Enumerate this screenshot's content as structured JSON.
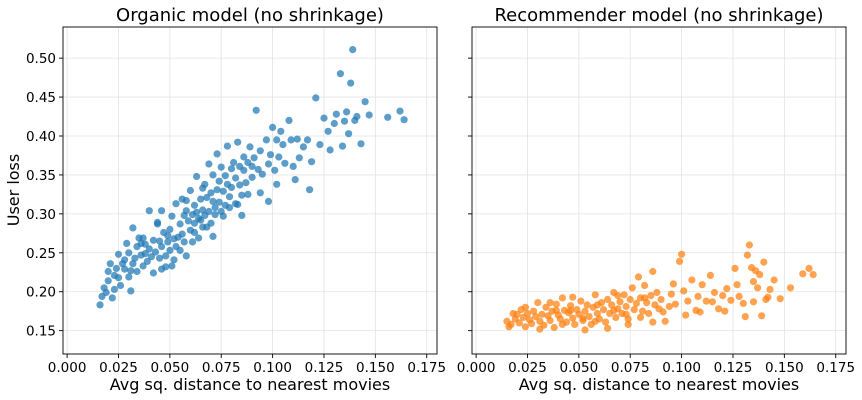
{
  "chart_data": [
    {
      "type": "scatter",
      "title": "Organic model (no shrinkage)",
      "xlabel": "Avg sq. distance to nearest movies",
      "ylabel": "User loss",
      "color": "#1f77b4",
      "xlim": [
        -0.002,
        0.18
      ],
      "ylim": [
        0.12,
        0.54
      ],
      "xticks": [
        "0.000",
        "0.025",
        "0.050",
        "0.075",
        "0.100",
        "0.125",
        "0.150",
        "0.175"
      ],
      "yticks": [
        "0.15",
        "0.20",
        "0.25",
        "0.30",
        "0.35",
        "0.40",
        "0.45",
        "0.50"
      ],
      "grid": true,
      "points": [
        [
          0.016,
          0.183
        ],
        [
          0.017,
          0.194
        ],
        [
          0.018,
          0.205
        ],
        [
          0.019,
          0.199
        ],
        [
          0.02,
          0.214
        ],
        [
          0.02,
          0.226
        ],
        [
          0.021,
          0.236
        ],
        [
          0.022,
          0.192
        ],
        [
          0.023,
          0.221
        ],
        [
          0.023,
          0.203
        ],
        [
          0.024,
          0.23
        ],
        [
          0.025,
          0.218
        ],
        [
          0.025,
          0.248
        ],
        [
          0.026,
          0.208
        ],
        [
          0.027,
          0.236
        ],
        [
          0.028,
          0.229
        ],
        [
          0.028,
          0.241
        ],
        [
          0.029,
          0.262
        ],
        [
          0.03,
          0.219
        ],
        [
          0.03,
          0.25
        ],
        [
          0.031,
          0.201
        ],
        [
          0.032,
          0.236
        ],
        [
          0.032,
          0.282
        ],
        [
          0.033,
          0.243
        ],
        [
          0.034,
          0.226
        ],
        [
          0.034,
          0.258
        ],
        [
          0.035,
          0.269
        ],
        [
          0.036,
          0.247
        ],
        [
          0.037,
          0.233
        ],
        [
          0.037,
          0.269
        ],
        [
          0.038,
          0.261
        ],
        [
          0.039,
          0.239
        ],
        [
          0.04,
          0.255
        ],
        [
          0.04,
          0.304
        ],
        [
          0.041,
          0.245
        ],
        [
          0.042,
          0.224
        ],
        [
          0.042,
          0.266
        ],
        [
          0.043,
          0.251
        ],
        [
          0.044,
          0.287
        ],
        [
          0.045,
          0.265
        ],
        [
          0.045,
          0.243
        ],
        [
          0.046,
          0.258
        ],
        [
          0.046,
          0.304
        ],
        [
          0.047,
          0.276
        ],
        [
          0.048,
          0.246
        ],
        [
          0.048,
          0.232
        ],
        [
          0.049,
          0.264
        ],
        [
          0.05,
          0.253
        ],
        [
          0.05,
          0.28
        ],
        [
          0.051,
          0.297
        ],
        [
          0.052,
          0.241
        ],
        [
          0.052,
          0.268
        ],
        [
          0.053,
          0.258
        ],
        [
          0.053,
          0.313
        ],
        [
          0.054,
          0.27
        ],
        [
          0.055,
          0.253
        ],
        [
          0.055,
          0.287
        ],
        [
          0.056,
          0.319
        ],
        [
          0.057,
          0.264
        ],
        [
          0.057,
          0.298
        ],
        [
          0.058,
          0.304
        ],
        [
          0.058,
          0.246
        ],
        [
          0.059,
          0.291
        ],
        [
          0.06,
          0.279
        ],
        [
          0.06,
          0.33
        ],
        [
          0.061,
          0.299
        ],
        [
          0.061,
          0.264
        ],
        [
          0.062,
          0.311
        ],
        [
          0.062,
          0.288
        ],
        [
          0.063,
          0.348
        ],
        [
          0.063,
          0.302
        ],
        [
          0.064,
          0.294
        ],
        [
          0.064,
          0.269
        ],
        [
          0.065,
          0.319
        ],
        [
          0.066,
          0.305
        ],
        [
          0.066,
          0.283
        ],
        [
          0.067,
          0.338
        ],
        [
          0.067,
          0.298
        ],
        [
          0.068,
          0.321
        ],
        [
          0.068,
          0.283
        ],
        [
          0.069,
          0.364
        ],
        [
          0.069,
          0.303
        ],
        [
          0.07,
          0.327
        ],
        [
          0.07,
          0.288
        ],
        [
          0.071,
          0.316
        ],
        [
          0.071,
          0.35
        ],
        [
          0.072,
          0.299
        ],
        [
          0.073,
          0.331
        ],
        [
          0.073,
          0.377
        ],
        [
          0.074,
          0.315
        ],
        [
          0.074,
          0.342
        ],
        [
          0.075,
          0.303
        ],
        [
          0.075,
          0.36
        ],
        [
          0.076,
          0.329
        ],
        [
          0.077,
          0.349
        ],
        [
          0.077,
          0.311
        ],
        [
          0.078,
          0.338
        ],
        [
          0.078,
          0.387
        ],
        [
          0.079,
          0.322
        ],
        [
          0.08,
          0.358
        ],
        [
          0.08,
          0.334
        ],
        [
          0.081,
          0.366
        ],
        [
          0.082,
          0.313
        ],
        [
          0.082,
          0.346
        ],
        [
          0.083,
          0.392
        ],
        [
          0.084,
          0.337
        ],
        [
          0.084,
          0.361
        ],
        [
          0.085,
          0.324
        ],
        [
          0.086,
          0.356
        ],
        [
          0.086,
          0.373
        ],
        [
          0.087,
          0.34
        ],
        [
          0.088,
          0.366
        ],
        [
          0.089,
          0.386
        ],
        [
          0.09,
          0.347
        ],
        [
          0.091,
          0.372
        ],
        [
          0.092,
          0.433
        ],
        [
          0.093,
          0.357
        ],
        [
          0.094,
          0.381
        ],
        [
          0.095,
          0.351
        ],
        [
          0.097,
          0.395
        ],
        [
          0.098,
          0.364
        ],
        [
          0.099,
          0.376
        ],
        [
          0.1,
          0.411
        ],
        [
          0.101,
          0.356
        ],
        [
          0.102,
          0.395
        ],
        [
          0.103,
          0.373
        ],
        [
          0.104,
          0.406
        ],
        [
          0.105,
          0.389
        ],
        [
          0.106,
          0.365
        ],
        [
          0.108,
          0.42
        ],
        [
          0.109,
          0.395
        ],
        [
          0.11,
          0.361
        ],
        [
          0.112,
          0.396
        ],
        [
          0.113,
          0.372
        ],
        [
          0.115,
          0.386
        ],
        [
          0.117,
          0.395
        ],
        [
          0.119,
          0.367
        ],
        [
          0.121,
          0.449
        ],
        [
          0.123,
          0.389
        ],
        [
          0.125,
          0.423
        ],
        [
          0.127,
          0.406
        ],
        [
          0.128,
          0.382
        ],
        [
          0.13,
          0.416
        ],
        [
          0.131,
          0.428
        ],
        [
          0.133,
          0.48
        ],
        [
          0.134,
          0.387
        ],
        [
          0.135,
          0.419
        ],
        [
          0.136,
          0.431
        ],
        [
          0.137,
          0.403
        ],
        [
          0.138,
          0.468
        ],
        [
          0.139,
          0.511
        ],
        [
          0.14,
          0.42
        ],
        [
          0.141,
          0.425
        ],
        [
          0.143,
          0.39
        ],
        [
          0.145,
          0.444
        ],
        [
          0.147,
          0.427
        ],
        [
          0.156,
          0.424
        ],
        [
          0.162,
          0.432
        ],
        [
          0.164,
          0.421
        ],
        [
          0.036,
          0.262
        ],
        [
          0.044,
          0.289
        ],
        [
          0.051,
          0.233
        ],
        [
          0.058,
          0.317
        ],
        [
          0.065,
          0.292
        ],
        [
          0.071,
          0.271
        ],
        [
          0.079,
          0.308
        ],
        [
          0.085,
          0.298
        ],
        [
          0.094,
          0.327
        ],
        [
          0.102,
          0.338
        ],
        [
          0.111,
          0.344
        ],
        [
          0.118,
          0.331
        ],
        [
          0.046,
          0.229
        ],
        [
          0.056,
          0.274
        ],
        [
          0.066,
          0.333
        ],
        [
          0.076,
          0.297
        ],
        [
          0.088,
          0.325
        ],
        [
          0.098,
          0.316
        ],
        [
          0.031,
          0.227
        ],
        [
          0.038,
          0.249
        ],
        [
          0.049,
          0.272
        ],
        [
          0.062,
          0.276
        ],
        [
          0.072,
          0.308
        ],
        [
          0.083,
          0.312
        ],
        [
          0.09,
          0.361
        ]
      ]
    },
    {
      "type": "scatter",
      "title": "Recommender model (no shrinkage)",
      "xlabel": "Avg sq. distance to nearest movies",
      "ylabel": "",
      "color": "#ff7f0e",
      "xlim": [
        -0.002,
        0.18
      ],
      "ylim": [
        0.12,
        0.54
      ],
      "xticks": [
        "0.000",
        "0.025",
        "0.050",
        "0.075",
        "0.100",
        "0.125",
        "0.150",
        "0.175"
      ],
      "yticks": [],
      "grid": true,
      "points": [
        [
          0.015,
          0.162
        ],
        [
          0.016,
          0.155
        ],
        [
          0.017,
          0.158
        ],
        [
          0.019,
          0.165
        ],
        [
          0.02,
          0.171
        ],
        [
          0.021,
          0.16
        ],
        [
          0.022,
          0.177
        ],
        [
          0.023,
          0.167
        ],
        [
          0.024,
          0.155
        ],
        [
          0.025,
          0.172
        ],
        [
          0.026,
          0.164
        ],
        [
          0.027,
          0.159
        ],
        [
          0.028,
          0.175
        ],
        [
          0.029,
          0.168
        ],
        [
          0.03,
          0.186
        ],
        [
          0.031,
          0.162
        ],
        [
          0.032,
          0.171
        ],
        [
          0.033,
          0.157
        ],
        [
          0.034,
          0.18
        ],
        [
          0.035,
          0.169
        ],
        [
          0.036,
          0.163
        ],
        [
          0.037,
          0.175
        ],
        [
          0.038,
          0.154
        ],
        [
          0.039,
          0.184
        ],
        [
          0.04,
          0.17
        ],
        [
          0.041,
          0.165
        ],
        [
          0.042,
          0.192
        ],
        [
          0.043,
          0.176
        ],
        [
          0.044,
          0.161
        ],
        [
          0.045,
          0.173
        ],
        [
          0.046,
          0.182
        ],
        [
          0.047,
          0.166
        ],
        [
          0.048,
          0.158
        ],
        [
          0.049,
          0.177
        ],
        [
          0.05,
          0.171
        ],
        [
          0.051,
          0.188
        ],
        [
          0.052,
          0.163
        ],
        [
          0.053,
          0.175
        ],
        [
          0.054,
          0.183
        ],
        [
          0.055,
          0.168
        ],
        [
          0.056,
          0.158
        ],
        [
          0.057,
          0.18
        ],
        [
          0.058,
          0.196
        ],
        [
          0.059,
          0.172
        ],
        [
          0.06,
          0.165
        ],
        [
          0.061,
          0.186
        ],
        [
          0.062,
          0.177
        ],
        [
          0.063,
          0.161
        ],
        [
          0.064,
          0.19
        ],
        [
          0.065,
          0.172
        ],
        [
          0.066,
          0.183
        ],
        [
          0.067,
          0.199
        ],
        [
          0.068,
          0.167
        ],
        [
          0.069,
          0.178
        ],
        [
          0.07,
          0.187
        ],
        [
          0.071,
          0.172
        ],
        [
          0.072,
          0.196
        ],
        [
          0.073,
          0.181
        ],
        [
          0.074,
          0.165
        ],
        [
          0.075,
          0.19
        ],
        [
          0.076,
          0.205
        ],
        [
          0.077,
          0.177
        ],
        [
          0.078,
          0.185
        ],
        [
          0.079,
          0.219
        ],
        [
          0.08,
          0.192
        ],
        [
          0.081,
          0.175
        ],
        [
          0.082,
          0.208
        ],
        [
          0.083,
          0.186
        ],
        [
          0.084,
          0.172
        ],
        [
          0.085,
          0.195
        ],
        [
          0.086,
          0.226
        ],
        [
          0.087,
          0.183
        ],
        [
          0.088,
          0.199
        ],
        [
          0.089,
          0.178
        ],
        [
          0.09,
          0.19
        ],
        [
          0.092,
          0.162
        ],
        [
          0.094,
          0.181
        ],
        [
          0.095,
          0.197
        ],
        [
          0.097,
          0.184
        ],
        [
          0.099,
          0.239
        ],
        [
          0.1,
          0.248
        ],
        [
          0.101,
          0.201
        ],
        [
          0.103,
          0.188
        ],
        [
          0.105,
          0.215
        ],
        [
          0.107,
          0.176
        ],
        [
          0.108,
          0.194
        ],
        [
          0.11,
          0.209
        ],
        [
          0.112,
          0.188
        ],
        [
          0.114,
          0.221
        ],
        [
          0.116,
          0.199
        ],
        [
          0.118,
          0.178
        ],
        [
          0.12,
          0.195
        ],
        [
          0.122,
          0.204
        ],
        [
          0.124,
          0.189
        ],
        [
          0.126,
          0.23
        ],
        [
          0.128,
          0.194
        ],
        [
          0.13,
          0.185
        ],
        [
          0.131,
          0.168
        ],
        [
          0.132,
          0.247
        ],
        [
          0.133,
          0.26
        ],
        [
          0.134,
          0.231
        ],
        [
          0.135,
          0.213
        ],
        [
          0.136,
          0.227
        ],
        [
          0.137,
          0.205
        ],
        [
          0.138,
          0.222
        ],
        [
          0.139,
          0.169
        ],
        [
          0.14,
          0.238
        ],
        [
          0.141,
          0.19
        ],
        [
          0.143,
          0.203
        ],
        [
          0.145,
          0.215
        ],
        [
          0.148,
          0.191
        ],
        [
          0.153,
          0.205
        ],
        [
          0.159,
          0.223
        ],
        [
          0.162,
          0.23
        ],
        [
          0.164,
          0.222
        ],
        [
          0.018,
          0.172
        ],
        [
          0.024,
          0.18
        ],
        [
          0.031,
          0.152
        ],
        [
          0.036,
          0.186
        ],
        [
          0.042,
          0.158
        ],
        [
          0.047,
          0.193
        ],
        [
          0.053,
          0.151
        ],
        [
          0.058,
          0.162
        ],
        [
          0.064,
          0.153
        ],
        [
          0.069,
          0.195
        ],
        [
          0.074,
          0.158
        ],
        [
          0.08,
          0.167
        ],
        [
          0.086,
          0.161
        ],
        [
          0.091,
          0.174
        ],
        [
          0.096,
          0.21
        ],
        [
          0.102,
          0.17
        ],
        [
          0.109,
          0.174
        ],
        [
          0.115,
          0.187
        ],
        [
          0.121,
          0.175
        ],
        [
          0.127,
          0.209
        ],
        [
          0.135,
          0.187
        ],
        [
          0.142,
          0.193
        ],
        [
          0.059,
          0.183
        ],
        [
          0.067,
          0.176
        ],
        [
          0.073,
          0.171
        ],
        [
          0.046,
          0.176
        ],
        [
          0.052,
          0.166
        ],
        [
          0.039,
          0.176
        ],
        [
          0.082,
          0.192
        ]
      ]
    }
  ]
}
